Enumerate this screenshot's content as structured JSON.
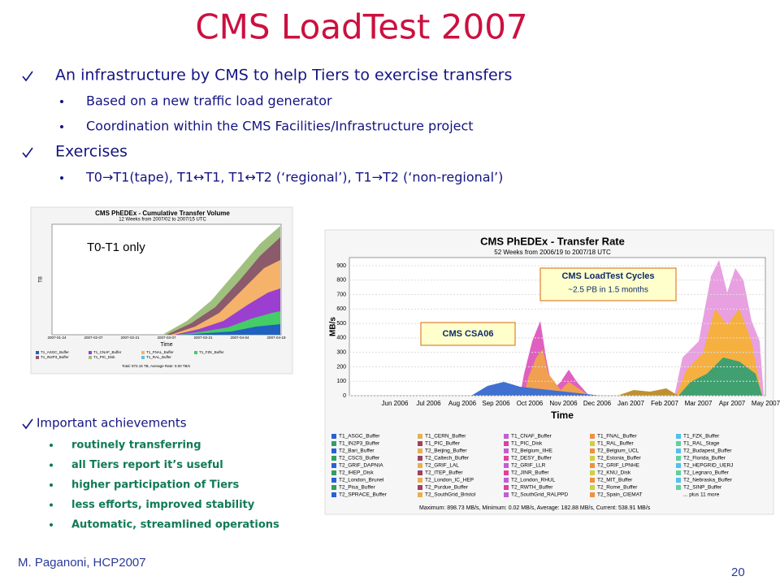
{
  "title": "CMS LoadTest 2007",
  "bullets": [
    {
      "text": "An infrastructure by CMS to help Tiers to exercise transfers",
      "sub": [
        "Based on a new traffic load generator",
        "Coordination within the CMS Facilities/Infrastructure project"
      ]
    },
    {
      "text": "Exercises",
      "sub": [
        "T0→T1(tape), T1↔T1, T1↔T2 (‘regional’), T1→T2 (‘non-regional’)"
      ]
    }
  ],
  "cumulative_chart": {
    "title": "CMS PhEDEx - Cumulative Transfer Volume",
    "subtitle": "12 Weeks from 2007/02 to 2007/15 UTC",
    "y_label": "TB",
    "x_label": "Time",
    "xticks": [
      "2007-01-24",
      "2007-02-07",
      "2007-02-21",
      "2007-03-07",
      "2007-03-21",
      "2007-04-04",
      "2007-04-18"
    ],
    "legend": [
      "T1_ASGC_Buffer",
      "T1_CNAF_Buffer",
      "T1_FNAL_Buffer",
      "T1_FZK_Buffer",
      "T1_IN2P3_Buffer",
      "T1_PIC_Disk",
      "T1_RAL_Buffer"
    ],
    "footer": "Total: 972.15 TB, Average Rate: 0.00 TB/s"
  },
  "overlay_label": "T0-T1 only",
  "rate_chart": {
    "title": "CMS PhEDEx - Transfer Rate",
    "subtitle": "52 Weeks from 2006/19 to 2007/18 UTC",
    "y_label": "MB/s",
    "x_label": "Time",
    "yticks": [
      0,
      100,
      200,
      300,
      400,
      500,
      600,
      700,
      800,
      900
    ],
    "xticks": [
      "Jun 2006",
      "Jul 2006",
      "Aug 2006",
      "Sep 2006",
      "Oct 2006",
      "Nov 2006",
      "Dec 2006",
      "Jan 2007",
      "Feb 2007",
      "Mar 2007",
      "Apr 2007",
      "May 2007"
    ],
    "legend": [
      "T1_ASGC_Buffer",
      "T1_CERN_Buffer",
      "T1_CNAF_Buffer",
      "T1_FNAL_Buffer",
      "T1_FZK_Buffer",
      "T1_IN2P3_Buffer",
      "T1_PIC_Buffer",
      "T1_PIC_Disk",
      "T1_RAL_Buffer",
      "T1_RAL_Stage",
      "T2_Bari_Buffer",
      "T2_Beijing_Buffer",
      "T2_Belgium_IIHE",
      "T2_Belgium_UCL",
      "T2_Budapest_Buffer",
      "T2_CSCS_Buffer",
      "T2_Caltech_Buffer",
      "T2_DESY_Buffer",
      "T2_Estonia_Buffer",
      "T2_Florida_Buffer",
      "T2_GRIF_DAPNIA",
      "T2_GRIF_LAL",
      "T2_GRIF_LLR",
      "T2_GRIF_LPNHE",
      "T2_HEPGRID_UERJ",
      "T2_IHEP_Disk",
      "T2_ITEP_Buffer",
      "T2_JINR_Buffer",
      "T2_KNU_Disk",
      "T2_Legnaro_Buffer",
      "T2_London_Brunel",
      "T2_London_IC_HEP",
      "T2_London_RHUL",
      "T2_MIT_Buffer",
      "T2_Nebraska_Buffer",
      "T2_Pisa_Buffer",
      "T2_Purdue_Buffer",
      "T2_RWTH_Buffer",
      "T2_Rome_Buffer",
      "T2_SINP_Buffer",
      "T2_SPRACE_Buffer",
      "T2_SouthGrid_Bristol",
      "T2_SouthGrid_RALPPD",
      "T2_Spain_CIEMAT",
      "... plus 11 more"
    ],
    "footer": "Maximum: 898.73 MB/s, Minimum: 0.02 MB/s, Average: 182.88 MB/s, Current: 538.91 MB/s",
    "annotations": [
      {
        "lines": [
          "CMS LoadTest Cycles",
          "~2.5 PB in 1.5 months"
        ]
      },
      {
        "lines": [
          "CMS CSA06"
        ]
      }
    ]
  },
  "achievements": {
    "title": "Important achievements",
    "items": [
      "routinely transferring",
      "all Tiers report it’s useful",
      "higher participation of Tiers",
      "less efforts, improved stability",
      "Automatic, streamlined operations"
    ]
  },
  "footer": {
    "author": "M. Paganoni, HCP2007",
    "page": "20"
  }
}
